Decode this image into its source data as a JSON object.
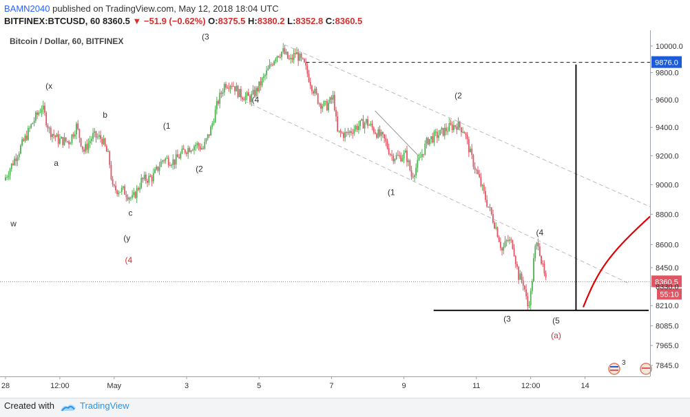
{
  "header": {
    "user": "BAMN2040",
    "published_text": "published on TradingView.com, May 12, 2018 18:04 UTC",
    "symbol": "BITFINEX:BTCUSD, 60",
    "price": "8360.5",
    "change": "−51.9 (−0.62%)",
    "o_label": "O:",
    "o_value": "8375.5",
    "h_label": "H:",
    "h_value": "8380.2",
    "l_label": "L:",
    "l_value": "8352.8",
    "c_label": "C:",
    "c_value": "8360.5"
  },
  "footer": {
    "created_with": "Created with",
    "brand": "TradingView"
  },
  "chart_data": {
    "type": "candlestick",
    "title": "Bitcoin / Dollar, 60, BITFINEX",
    "interval": "60",
    "y_scale": "log",
    "ylim": [
      7780,
      10120
    ],
    "y_ticks": [
      10000,
      9800,
      9600,
      9400,
      9200,
      9000,
      8800,
      8600,
      8450,
      8330,
      8210,
      8085,
      7965,
      7845
    ],
    "y_tick_labels": [
      "10000.0",
      "9800.0",
      "9600.0",
      "9400.0",
      "9200.0",
      "9000.0",
      "8800.0",
      "8600.0",
      "8450.0",
      "8330.0",
      "8210.0",
      "8085.0",
      "7965.0",
      "7845.0"
    ],
    "x_range_days_from_apr28": [
      0,
      17.8
    ],
    "x_ticks": [
      {
        "day": 0,
        "label": "28"
      },
      {
        "day": 1.5,
        "label": "12:00"
      },
      {
        "day": 3,
        "label": "May"
      },
      {
        "day": 5,
        "label": "3"
      },
      {
        "day": 7,
        "label": "5"
      },
      {
        "day": 9,
        "label": "7"
      },
      {
        "day": 11,
        "label": "9"
      },
      {
        "day": 13,
        "label": "11"
      },
      {
        "day": 14.5,
        "label": "12:00"
      },
      {
        "day": 16,
        "label": "14"
      }
    ],
    "colors": {
      "up": "#4caf50",
      "down": "#e05563",
      "wave": "#333333",
      "wave_red": "#d32f2f",
      "projection": "#e00000",
      "channel": "#b7bbc2"
    },
    "last_price": 8360.5,
    "last_price_label": "8360.5",
    "countdown": "55:10",
    "target_price": 9876,
    "target_label": "9876.0",
    "support_price": 8180,
    "path": [
      [
        0.0,
        9030
      ],
      [
        0.3,
        9180
      ],
      [
        0.6,
        9330
      ],
      [
        0.8,
        9440
      ],
      [
        1.05,
        9550
      ],
      [
        1.25,
        9380
      ],
      [
        1.5,
        9310
      ],
      [
        1.8,
        9300
      ],
      [
        2.0,
        9410
      ],
      [
        2.2,
        9230
      ],
      [
        2.45,
        9340
      ],
      [
        2.7,
        9320
      ],
      [
        2.9,
        9180
      ],
      [
        3.0,
        8970
      ],
      [
        3.3,
        8960
      ],
      [
        3.55,
        8900
      ],
      [
        3.8,
        9030
      ],
      [
        4.1,
        9050
      ],
      [
        4.4,
        9180
      ],
      [
        4.7,
        9160
      ],
      [
        5.0,
        9240
      ],
      [
        5.3,
        9280
      ],
      [
        5.5,
        9250
      ],
      [
        5.7,
        9380
      ],
      [
        5.9,
        9580
      ],
      [
        6.1,
        9720
      ],
      [
        6.3,
        9720
      ],
      [
        6.5,
        9640
      ],
      [
        6.8,
        9610
      ],
      [
        7.0,
        9680
      ],
      [
        7.3,
        9820
      ],
      [
        7.5,
        9930
      ],
      [
        7.7,
        9960
      ],
      [
        7.9,
        9880
      ],
      [
        8.05,
        9950
      ],
      [
        8.3,
        9850
      ],
      [
        8.5,
        9700
      ],
      [
        8.7,
        9580
      ],
      [
        8.9,
        9550
      ],
      [
        9.1,
        9620
      ],
      [
        9.2,
        9360
      ],
      [
        9.45,
        9350
      ],
      [
        9.7,
        9400
      ],
      [
        10.0,
        9440
      ],
      [
        10.3,
        9360
      ],
      [
        10.5,
        9310
      ],
      [
        10.7,
        9200
      ],
      [
        10.9,
        9190
      ],
      [
        11.1,
        9210
      ],
      [
        11.25,
        9060
      ],
      [
        11.4,
        9130
      ],
      [
        11.7,
        9310
      ],
      [
        12.0,
        9350
      ],
      [
        12.3,
        9400
      ],
      [
        12.5,
        9420
      ],
      [
        12.7,
        9380
      ],
      [
        12.9,
        9190
      ],
      [
        13.1,
        9050
      ],
      [
        13.3,
        8900
      ],
      [
        13.45,
        8800
      ],
      [
        13.6,
        8700
      ],
      [
        13.75,
        8560
      ],
      [
        13.9,
        8630
      ],
      [
        14.05,
        8600
      ],
      [
        14.2,
        8400
      ],
      [
        14.35,
        8350
      ],
      [
        14.45,
        8200
      ],
      [
        14.55,
        8290
      ],
      [
        14.65,
        8560
      ],
      [
        14.75,
        8620
      ],
      [
        14.85,
        8470
      ],
      [
        14.95,
        8360.5
      ]
    ],
    "trendlines": [
      {
        "name": "upper-channel",
        "from": [
          7.7,
          10010
        ],
        "to": [
          17.8,
          8850
        ],
        "style": "dashed"
      },
      {
        "name": "lower-channel",
        "from": [
          6.6,
          9590
        ],
        "to": [
          17.2,
          8350
        ],
        "style": "dashed"
      },
      {
        "name": "minor-trend",
        "from": [
          10.2,
          9520
        ],
        "to": [
          11.4,
          9200
        ],
        "style": "solid"
      }
    ],
    "annotations": [
      {
        "text": "(x",
        "day": 1.2,
        "price": 9680,
        "color": "wave"
      },
      {
        "text": "b",
        "day": 2.75,
        "price": 9470,
        "color": "wave"
      },
      {
        "text": "a",
        "day": 1.4,
        "price": 9130,
        "color": "wave"
      },
      {
        "text": "(1",
        "day": 4.45,
        "price": 9390,
        "color": "wave"
      },
      {
        "text": "(2",
        "day": 5.35,
        "price": 9090,
        "color": "wave"
      },
      {
        "text": "c",
        "day": 3.45,
        "price": 8790,
        "color": "wave"
      },
      {
        "text": "(y",
        "day": 3.35,
        "price": 8625,
        "color": "wave"
      },
      {
        "text": "(4",
        "day": 3.4,
        "price": 8480,
        "color": "wave_red"
      },
      {
        "text": "w",
        "day": 0.22,
        "price": 8720,
        "color": "wave"
      },
      {
        "text": "(3",
        "day": 5.52,
        "price": 10050,
        "color": "wave"
      },
      {
        "text": "(4",
        "day": 6.9,
        "price": 9580,
        "color": "wave"
      },
      {
        "text": "(1",
        "day": 10.65,
        "price": 8930,
        "color": "wave"
      },
      {
        "text": "(2",
        "day": 12.5,
        "price": 9610,
        "color": "wave"
      },
      {
        "text": "(4",
        "day": 14.75,
        "price": 8660,
        "color": "wave"
      },
      {
        "text": "(3",
        "day": 13.85,
        "price": 8110,
        "color": "wave"
      },
      {
        "text": "(5",
        "day": 15.2,
        "price": 8100,
        "color": "wave"
      },
      {
        "text": "(a)",
        "day": 15.2,
        "price": 8010,
        "color": "wave_red"
      }
    ],
    "indicator_badge": "3"
  }
}
